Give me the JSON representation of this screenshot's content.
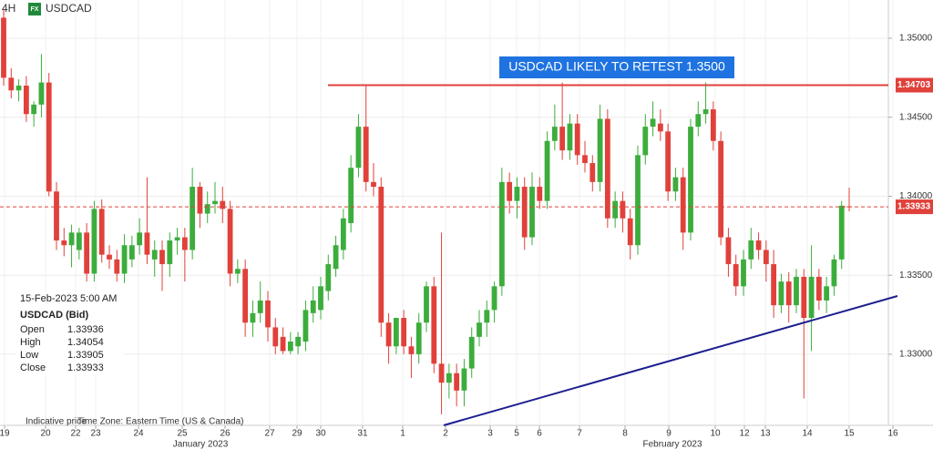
{
  "header": {
    "timeframe": "4H",
    "badge": "FX",
    "symbol": "USDCAD"
  },
  "chart_data": {
    "type": "candlestick",
    "annotation": "USDCAD LIKELY TO RETEST 1.3500",
    "up_color": "#3cad3c",
    "down_color": "#e0413b",
    "ylim": [
      1.3255,
      1.35242
    ],
    "yticks": [
      {
        "value": 1.35,
        "label": "1.35000"
      },
      {
        "value": 1.345,
        "label": "1.34500"
      },
      {
        "value": 1.34,
        "label": "1.34000"
      },
      {
        "value": 1.335,
        "label": "1.33500"
      },
      {
        "value": 1.33,
        "label": "1.33000"
      }
    ],
    "grid": true,
    "resistance": {
      "value": 1.34703,
      "label": "1.34703",
      "color": "#e0413b"
    },
    "last_price": {
      "value": 1.33933,
      "label": "1.33933",
      "color": "#e0413b"
    },
    "date_labels": [
      "19",
      "20",
      "22",
      "23",
      "24",
      "25",
      "26",
      "27",
      "29",
      "30",
      "31",
      "1",
      "2",
      "3",
      "5",
      "6",
      "7",
      "8",
      "9",
      "10",
      "12",
      "13",
      "14",
      "15",
      "16"
    ],
    "month_labels": [
      "January 2023",
      "February 2023"
    ],
    "ohlc": [
      [
        1.3513,
        1.3518,
        1.347,
        1.3475
      ],
      [
        1.3475,
        1.3481,
        1.3462,
        1.3467
      ],
      [
        1.3467,
        1.3474,
        1.346,
        1.347
      ],
      [
        1.347,
        1.3476,
        1.3447,
        1.3452
      ],
      [
        1.3452,
        1.346,
        1.3444,
        1.3458
      ],
      [
        1.3458,
        1.349,
        1.345,
        1.3472
      ],
      [
        1.3472,
        1.3478,
        1.34,
        1.3403
      ],
      [
        1.3403,
        1.3409,
        1.3366,
        1.3372
      ],
      [
        1.3372,
        1.338,
        1.3362,
        1.3369
      ],
      [
        1.3369,
        1.3382,
        1.3355,
        1.3377
      ],
      [
        1.3366,
        1.338,
        1.336,
        1.3377
      ],
      [
        1.3377,
        1.3383,
        1.3346,
        1.3351
      ],
      [
        1.3351,
        1.3397,
        1.3346,
        1.3392
      ],
      [
        1.3392,
        1.3398,
        1.3358,
        1.3363
      ],
      [
        1.3363,
        1.3369,
        1.3354,
        1.336
      ],
      [
        1.336,
        1.3366,
        1.3346,
        1.3351
      ],
      [
        1.3351,
        1.3376,
        1.3345,
        1.3369
      ],
      [
        1.336,
        1.3375,
        1.3355,
        1.3369
      ],
      [
        1.3369,
        1.3386,
        1.3363,
        1.3377
      ],
      [
        1.3377,
        1.3412,
        1.3357,
        1.3363
      ],
      [
        1.336,
        1.3372,
        1.3349,
        1.3366
      ],
      [
        1.3366,
        1.3372,
        1.334,
        1.3357
      ],
      [
        1.3357,
        1.3377,
        1.3349,
        1.3372
      ],
      [
        1.3372,
        1.338,
        1.3363,
        1.3374
      ],
      [
        1.3374,
        1.338,
        1.3346,
        1.3366
      ],
      [
        1.3366,
        1.3418,
        1.336,
        1.3406
      ],
      [
        1.3406,
        1.3409,
        1.338,
        1.3389
      ],
      [
        1.3389,
        1.3403,
        1.3383,
        1.3395
      ],
      [
        1.3395,
        1.3409,
        1.3389,
        1.3397
      ],
      [
        1.3397,
        1.3406,
        1.3383,
        1.3392
      ],
      [
        1.3392,
        1.3397,
        1.3343,
        1.3351
      ],
      [
        1.3351,
        1.336,
        1.3345,
        1.3354
      ],
      [
        1.3354,
        1.336,
        1.3311,
        1.332
      ],
      [
        1.332,
        1.3334,
        1.3311,
        1.3326
      ],
      [
        1.3326,
        1.3346,
        1.332,
        1.3334
      ],
      [
        1.3334,
        1.334,
        1.3308,
        1.3317
      ],
      [
        1.3317,
        1.3323,
        1.33,
        1.3305
      ],
      [
        1.3311,
        1.3317,
        1.33,
        1.3302
      ],
      [
        1.3302,
        1.3314,
        1.33,
        1.3308
      ],
      [
        1.3305,
        1.3314,
        1.33,
        1.3311
      ],
      [
        1.3308,
        1.3334,
        1.3302,
        1.3328
      ],
      [
        1.3326,
        1.3343,
        1.332,
        1.3334
      ],
      [
        1.3328,
        1.3349,
        1.3322,
        1.3343
      ],
      [
        1.334,
        1.3363,
        1.3334,
        1.3357
      ],
      [
        1.3354,
        1.3375,
        1.3349,
        1.3369
      ],
      [
        1.3366,
        1.3392,
        1.336,
        1.3386
      ],
      [
        1.3383,
        1.3426,
        1.3377,
        1.3418
      ],
      [
        1.3418,
        1.3452,
        1.3412,
        1.3444
      ],
      [
        1.3444,
        1.347,
        1.3403,
        1.3409
      ],
      [
        1.3409,
        1.3421,
        1.34,
        1.3406
      ],
      [
        1.3406,
        1.3412,
        1.3311,
        1.332
      ],
      [
        1.332,
        1.3326,
        1.3294,
        1.3305
      ],
      [
        1.3305,
        1.3323,
        1.33,
        1.3323
      ],
      [
        1.3323,
        1.3328,
        1.33,
        1.3305
      ],
      [
        1.3305,
        1.3311,
        1.3285,
        1.33
      ],
      [
        1.33,
        1.3326,
        1.3294,
        1.332
      ],
      [
        1.332,
        1.3346,
        1.3314,
        1.3343
      ],
      [
        1.3343,
        1.3349,
        1.3288,
        1.3294
      ],
      [
        1.3294,
        1.3377,
        1.3262,
        1.3282
      ],
      [
        1.3282,
        1.3294,
        1.3272,
        1.3288
      ],
      [
        1.3288,
        1.3294,
        1.3267,
        1.3277
      ],
      [
        1.3277,
        1.3297,
        1.3267,
        1.3291
      ],
      [
        1.3291,
        1.3317,
        1.3285,
        1.3311
      ],
      [
        1.3311,
        1.3328,
        1.3305,
        1.332
      ],
      [
        1.332,
        1.3334,
        1.3311,
        1.3328
      ],
      [
        1.3328,
        1.3346,
        1.332,
        1.3343
      ],
      [
        1.3343,
        1.3418,
        1.3337,
        1.3409
      ],
      [
        1.3409,
        1.3415,
        1.3389,
        1.3397
      ],
      [
        1.3397,
        1.3412,
        1.3386,
        1.3406
      ],
      [
        1.3406,
        1.3412,
        1.3366,
        1.3374
      ],
      [
        1.3374,
        1.3415,
        1.3369,
        1.3406
      ],
      [
        1.3406,
        1.3412,
        1.3392,
        1.3397
      ],
      [
        1.3397,
        1.3441,
        1.3392,
        1.3435
      ],
      [
        1.3435,
        1.3458,
        1.3429,
        1.3444
      ],
      [
        1.3444,
        1.3472,
        1.3423,
        1.3429
      ],
      [
        1.3429,
        1.3452,
        1.3423,
        1.3446
      ],
      [
        1.3446,
        1.3452,
        1.342,
        1.3426
      ],
      [
        1.3426,
        1.3435,
        1.3415,
        1.3421
      ],
      [
        1.3421,
        1.3426,
        1.3403,
        1.3409
      ],
      [
        1.3409,
        1.3458,
        1.3403,
        1.3449
      ],
      [
        1.3449,
        1.3455,
        1.338,
        1.3386
      ],
      [
        1.3386,
        1.3403,
        1.338,
        1.3397
      ],
      [
        1.3397,
        1.3403,
        1.3377,
        1.3386
      ],
      [
        1.3386,
        1.3392,
        1.336,
        1.3369
      ],
      [
        1.3369,
        1.3432,
        1.3363,
        1.3426
      ],
      [
        1.3426,
        1.3452,
        1.342,
        1.3444
      ],
      [
        1.3444,
        1.346,
        1.3438,
        1.3449
      ],
      [
        1.3446,
        1.3455,
        1.3435,
        1.3441
      ],
      [
        1.3441,
        1.3446,
        1.3397,
        1.3403
      ],
      [
        1.3403,
        1.3418,
        1.3397,
        1.3412
      ],
      [
        1.3412,
        1.3418,
        1.3366,
        1.3377
      ],
      [
        1.3377,
        1.3449,
        1.3372,
        1.3444
      ],
      [
        1.3444,
        1.346,
        1.3438,
        1.3452
      ],
      [
        1.3452,
        1.3472,
        1.3446,
        1.3455
      ],
      [
        1.3455,
        1.346,
        1.3429,
        1.3435
      ],
      [
        1.3435,
        1.3441,
        1.3369,
        1.3374
      ],
      [
        1.3374,
        1.338,
        1.3349,
        1.3357
      ],
      [
        1.3357,
        1.3363,
        1.3337,
        1.3343
      ],
      [
        1.3343,
        1.3366,
        1.3337,
        1.336
      ],
      [
        1.336,
        1.338,
        1.3354,
        1.3372
      ],
      [
        1.3372,
        1.3377,
        1.336,
        1.3366
      ],
      [
        1.3366,
        1.3372,
        1.3346,
        1.3357
      ],
      [
        1.3357,
        1.3366,
        1.3323,
        1.3331
      ],
      [
        1.3331,
        1.3351,
        1.3326,
        1.3346
      ],
      [
        1.3346,
        1.3352,
        1.332,
        1.3331
      ],
      [
        1.3331,
        1.3354,
        1.3326,
        1.3349
      ],
      [
        1.3349,
        1.3354,
        1.3272,
        1.3323
      ],
      [
        1.3323,
        1.3369,
        1.3302,
        1.3349
      ],
      [
        1.3349,
        1.3354,
        1.3328,
        1.3334
      ],
      [
        1.3334,
        1.3349,
        1.3326,
        1.3343
      ],
      [
        1.3343,
        1.3363,
        1.3337,
        1.336
      ],
      [
        1.336,
        1.3397,
        1.3354,
        1.3394
      ],
      [
        1.33936,
        1.34054,
        1.33905,
        1.33933
      ]
    ]
  },
  "info_box": {
    "datetime": "15-Feb-2023 5:00 AM",
    "symbol": "USDCAD (Bid)",
    "rows": [
      [
        "Open",
        1.33936
      ],
      [
        "High",
        1.34054
      ],
      [
        "Low",
        1.33905
      ],
      [
        "Close",
        1.33933
      ]
    ]
  },
  "footer": {
    "note": "Indicative price",
    "timezone": "Time Zone: Eastern Time (US & Canada)"
  }
}
